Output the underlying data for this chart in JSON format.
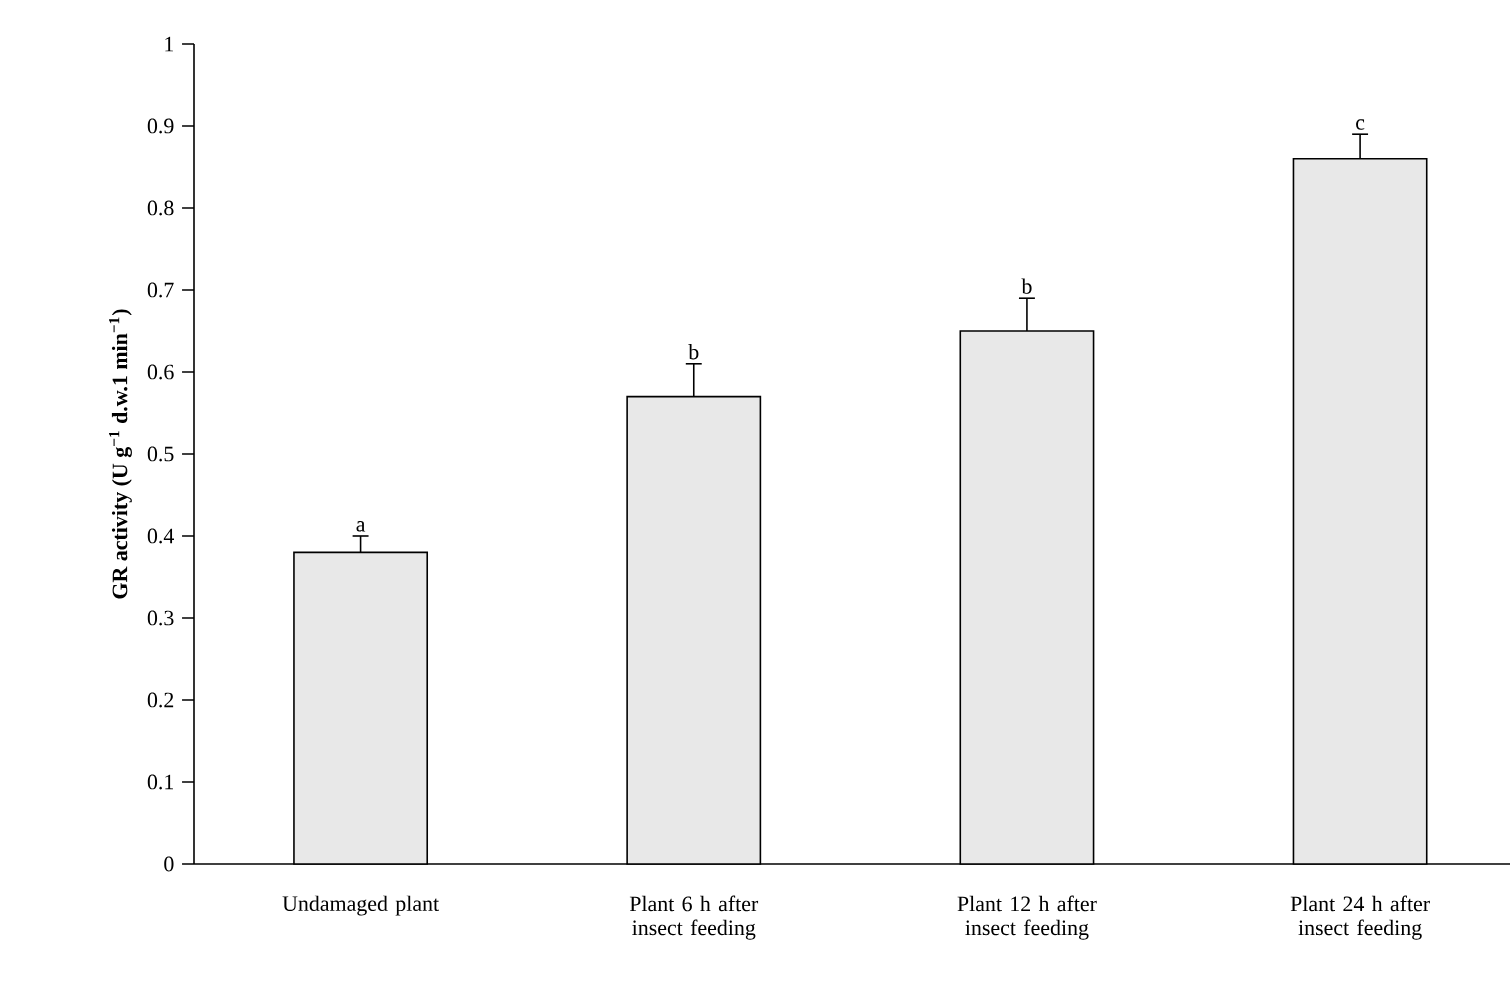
{
  "chart_data": {
    "type": "bar",
    "ylabel": "GR activity (U g$^{−1}$ d.w.1 min$^{−1}$)",
    "categories": [
      "Undamaged plant",
      "Plant 6 h after insect feeding",
      "Plant 12 h after insect feeding",
      "Plant 24 h after insect feeding"
    ],
    "values": [
      0.38,
      0.57,
      0.65,
      0.86
    ],
    "errors": [
      0.02,
      0.04,
      0.04,
      0.03
    ],
    "color": "#e8e8e8",
    "ylim": [
      0,
      1
    ],
    "yticks": [
      0,
      0.1,
      0.2,
      0.3,
      0.4,
      0.5,
      0.6,
      0.7,
      0.8,
      0.9,
      1
    ],
    "annotations": [
      {
        "text": "a",
        "x": "Undamaged plant",
        "y": 0.4
      },
      {
        "text": "b",
        "x": "Plant 6 h after insect feeding",
        "y": 0.61
      },
      {
        "text": "b",
        "x": "Plant 12 h after insect feeding",
        "y": 0.69
      },
      {
        "text": "c",
        "x": "Plant 24 h after insect feeding",
        "y": 0.89
      }
    ]
  }
}
